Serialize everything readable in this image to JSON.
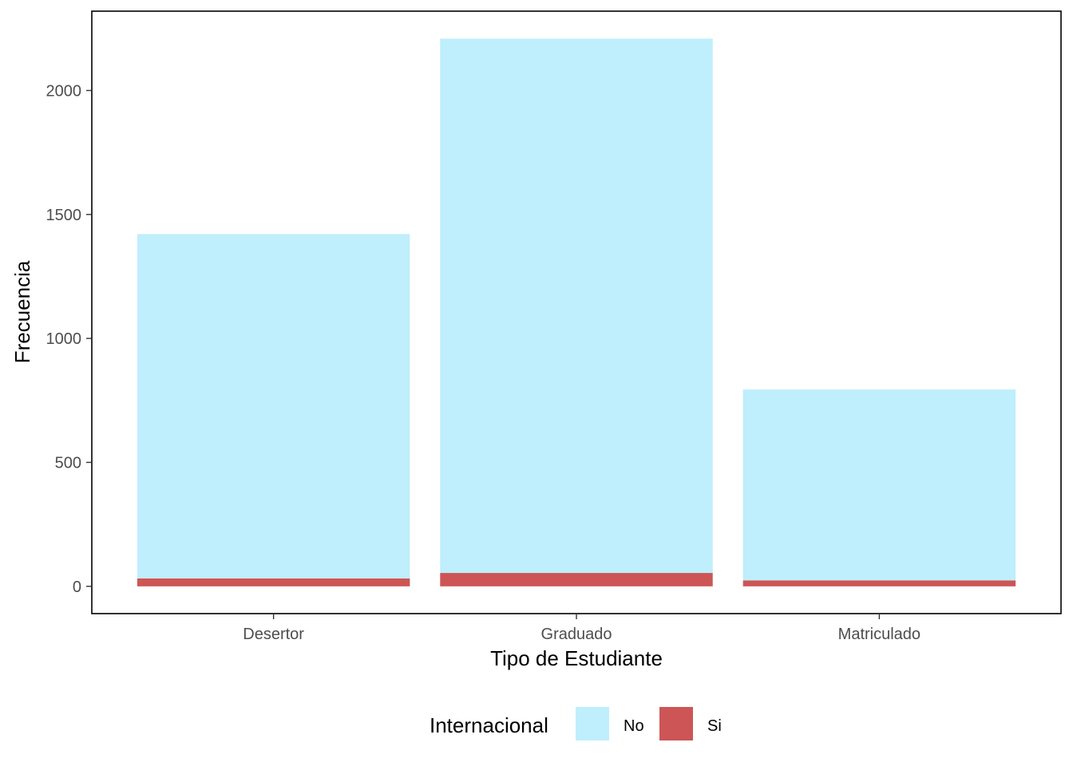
{
  "chart_data": {
    "type": "bar",
    "stacked": true,
    "categories": [
      "Desertor",
      "Graduado",
      "Matriculado"
    ],
    "series": [
      {
        "name": "No",
        "color": "#BFEEFC",
        "values": [
          1389,
          2155,
          770
        ]
      },
      {
        "name": "Si",
        "color": "#CD5555",
        "values": [
          32,
          54,
          24
        ]
      }
    ],
    "xlabel": "Tipo de Estudiante",
    "ylabel": "Frecuencia",
    "yticks": [
      0,
      500,
      1000,
      1500,
      2000
    ],
    "ylim": [
      -110,
      2320
    ],
    "grid": false,
    "legend": {
      "title": "Internacional",
      "position": "bottom"
    }
  }
}
